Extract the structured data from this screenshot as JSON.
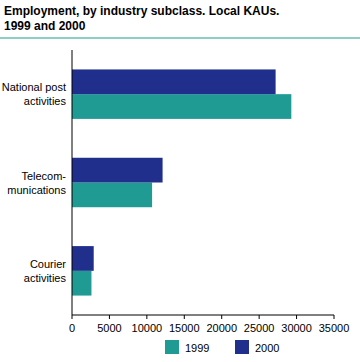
{
  "chart_data": {
    "type": "bar",
    "orientation": "horizontal",
    "title": "Employment, by industry subclass. Local KAUs.\n1999 and 2000",
    "categories": [
      "National post\nactivities",
      "Telecom-\nmunications",
      "Courier\nactivities"
    ],
    "series": [
      {
        "name": "1999",
        "color": "#1f9b93",
        "values": [
          29300,
          10700,
          2600
        ]
      },
      {
        "name": "2000",
        "color": "#202f8c",
        "values": [
          27200,
          12100,
          2900
        ]
      }
    ],
    "xlim": [
      0,
      35000
    ],
    "xticks": [
      0,
      5000,
      10000,
      15000,
      20000,
      25000,
      30000,
      35000
    ],
    "grid": false,
    "legend": "bottom"
  }
}
